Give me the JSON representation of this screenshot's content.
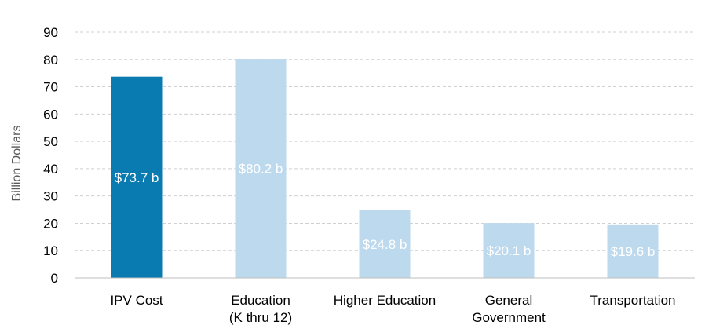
{
  "chart_data": {
    "type": "bar",
    "title": "",
    "xlabel": "",
    "ylabel": "Billion Dollars",
    "ylim": [
      0,
      90
    ],
    "yticks": [
      0,
      10,
      20,
      30,
      40,
      50,
      60,
      70,
      80,
      90
    ],
    "grid": true,
    "categories": [
      [
        "IPV Cost"
      ],
      [
        "Education",
        "(K thru 12)"
      ],
      [
        "Higher Education"
      ],
      [
        "General",
        "Government"
      ],
      [
        "Transportation"
      ]
    ],
    "values": [
      73.7,
      80.2,
      24.8,
      20.1,
      19.6
    ],
    "data_labels": [
      "$73.7 b",
      "$80.2 b",
      "$24.8 b",
      "$20.1 b",
      "$19.6 b"
    ],
    "colors": [
      "#0a7bb0",
      "#bdd9ed",
      "#bdd9ed",
      "#bdd9ed",
      "#bdd9ed"
    ]
  }
}
